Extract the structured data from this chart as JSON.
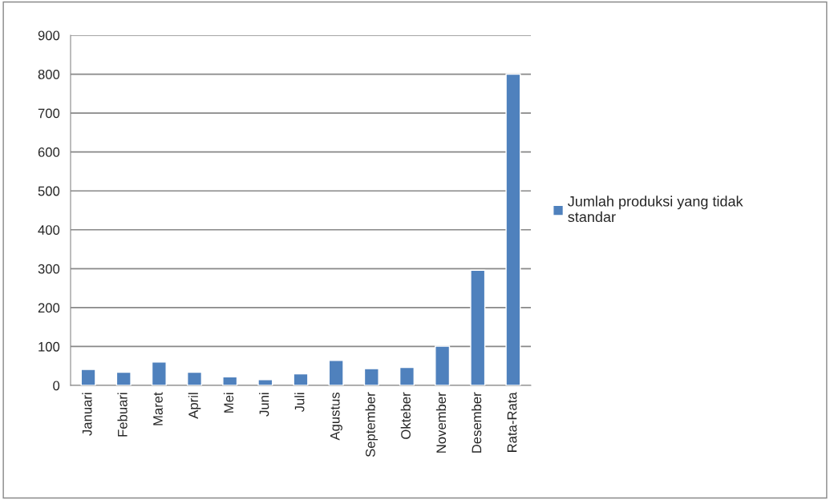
{
  "chart_data": {
    "type": "bar",
    "categories": [
      "Januari",
      "Febuari",
      "Maret",
      "April",
      "Mei",
      "Juni",
      "Juli",
      "Agustus",
      "September",
      "Okteber",
      "November",
      "Desember",
      "Rata-Rata"
    ],
    "series": [
      {
        "name": "Jumlah produksi yang tidak standar",
        "color": "#4f81bd",
        "values": [
          41,
          34,
          60,
          34,
          22,
          15,
          30,
          64,
          43,
          46,
          101,
          296,
          800
        ]
      }
    ],
    "ylim": [
      0,
      900
    ],
    "yticks": [
      0,
      100,
      200,
      300,
      400,
      500,
      600,
      700,
      800,
      900
    ],
    "grid": "y",
    "legend": "right"
  }
}
